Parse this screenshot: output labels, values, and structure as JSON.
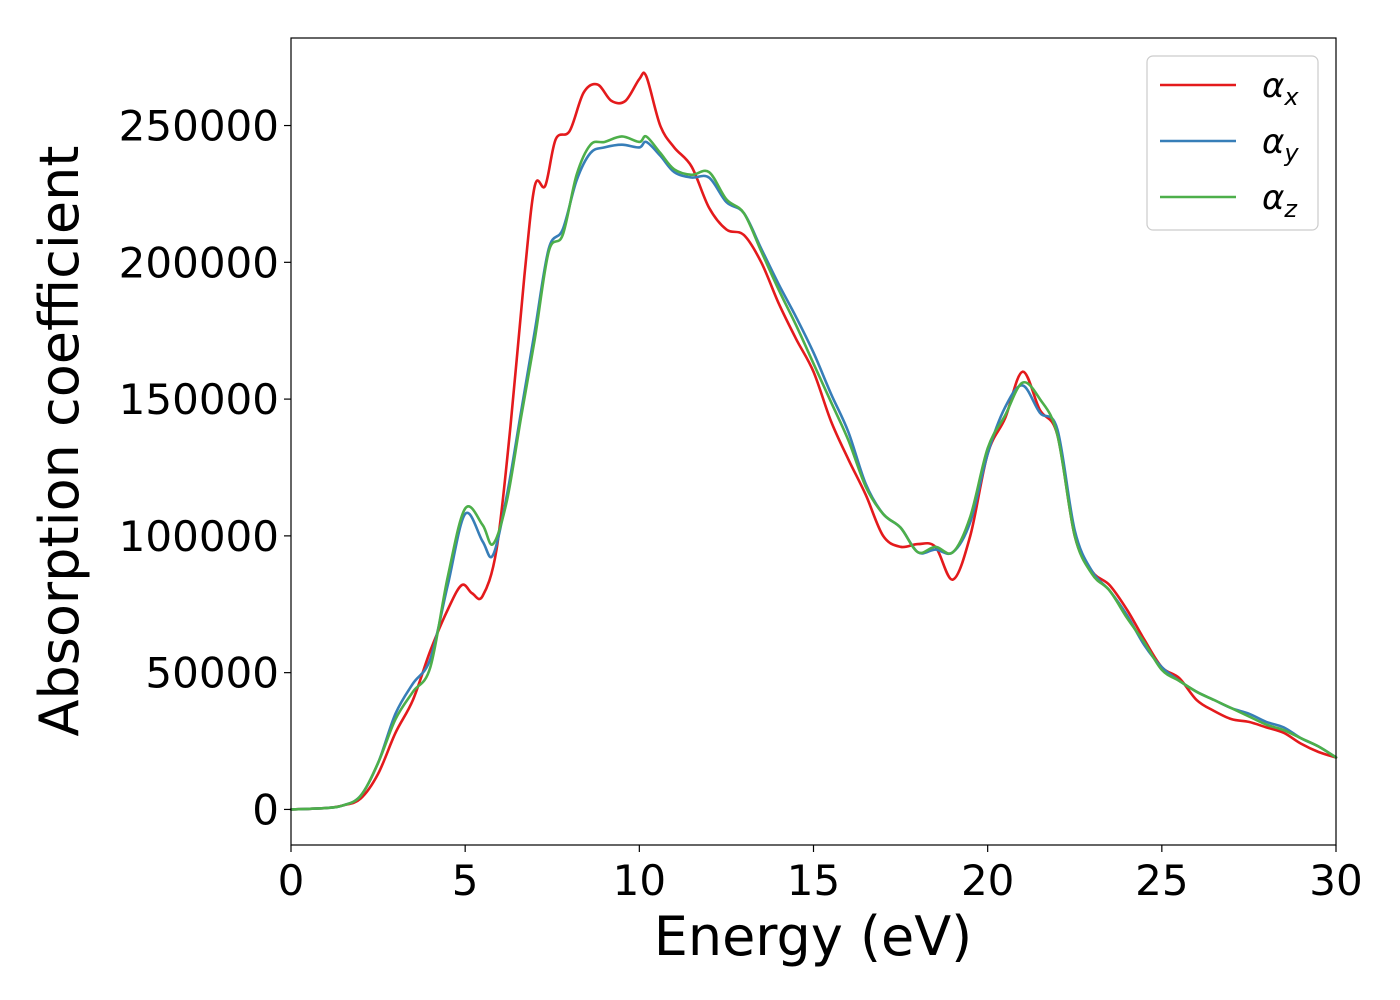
{
  "chart_data": {
    "type": "line",
    "xlabel": "Energy (eV)",
    "ylabel": "Absorption coefficient",
    "xlim": [
      0,
      30
    ],
    "ylim": [
      -13000,
      282000
    ],
    "xticks": [
      "0",
      "5",
      "10",
      "15",
      "20",
      "25",
      "30"
    ],
    "yticks": [
      "0",
      "50000",
      "100000",
      "150000",
      "200000",
      "250000"
    ],
    "grid": false,
    "legend_position": "top-right",
    "series": [
      {
        "name": "α",
        "subscript": "x",
        "color": "#e41a1c",
        "x": [
          0,
          1,
          1.5,
          2,
          2.5,
          3,
          3.5,
          4,
          4.5,
          4.9,
          5.2,
          5.5,
          5.9,
          6.3,
          6.7,
          7.0,
          7.3,
          7.6,
          8.0,
          8.4,
          8.8,
          9.2,
          9.6,
          10.0,
          10.2,
          10.6,
          11.0,
          11.5,
          12.0,
          12.5,
          13.0,
          13.5,
          14.0,
          14.5,
          15.0,
          15.5,
          16.0,
          16.5,
          17.0,
          17.5,
          18.0,
          18.5,
          19.0,
          19.5,
          20.0,
          20.5,
          21.0,
          21.5,
          22.0,
          22.5,
          23.0,
          23.5,
          24.0,
          24.5,
          25.0,
          25.5,
          26.0,
          26.5,
          27.0,
          27.5,
          28.0,
          28.5,
          29.0,
          29.5,
          30.0
        ],
        "y": [
          0,
          500,
          1500,
          4000,
          13000,
          28000,
          40000,
          58000,
          73000,
          82000,
          79000,
          78000,
          95000,
          140000,
          195000,
          228000,
          228000,
          245000,
          248000,
          262000,
          265000,
          259000,
          259000,
          267000,
          268000,
          250000,
          242000,
          235000,
          220000,
          212000,
          210000,
          200000,
          185000,
          172000,
          160000,
          142000,
          128000,
          115000,
          100000,
          96000,
          97000,
          96000,
          84000,
          100000,
          130000,
          143000,
          160000,
          146000,
          137000,
          100000,
          87000,
          82000,
          73000,
          62000,
          52000,
          48000,
          40000,
          36000,
          33000,
          32000,
          30000,
          28000,
          24000,
          21000,
          19000
        ]
      },
      {
        "name": "α",
        "subscript": "y",
        "color": "#377eb8",
        "x": [
          0,
          1,
          1.5,
          2,
          2.5,
          3,
          3.5,
          4,
          4.5,
          5.0,
          5.5,
          5.8,
          6.2,
          6.6,
          7.0,
          7.4,
          7.8,
          8.2,
          8.6,
          9.0,
          9.5,
          10.0,
          10.2,
          10.6,
          11.0,
          11.5,
          12.0,
          12.5,
          13.0,
          13.5,
          14.0,
          14.5,
          15.0,
          15.5,
          16.0,
          16.5,
          17.0,
          17.5,
          18.0,
          18.5,
          19.0,
          19.5,
          20.0,
          20.5,
          21.0,
          21.5,
          22.0,
          22.5,
          23.0,
          23.5,
          24.0,
          24.5,
          25.0,
          25.5,
          26.0,
          26.5,
          27.0,
          27.5,
          28.0,
          28.5,
          29.0,
          29.5,
          30.0
        ],
        "y": [
          0,
          500,
          1500,
          5000,
          17000,
          35000,
          46000,
          55000,
          82000,
          108000,
          98000,
          93000,
          115000,
          145000,
          175000,
          205000,
          212000,
          230000,
          240000,
          242000,
          243000,
          242000,
          244000,
          239000,
          233000,
          231000,
          231000,
          222000,
          218000,
          205000,
          192000,
          180000,
          167000,
          152000,
          138000,
          119000,
          108000,
          103000,
          94000,
          95000,
          94000,
          105000,
          130000,
          147000,
          155000,
          145000,
          139000,
          102000,
          87000,
          80000,
          71000,
          60000,
          52000,
          47000,
          43000,
          40000,
          37000,
          35000,
          32000,
          30000,
          26000,
          23000,
          19000
        ]
      },
      {
        "name": "α",
        "subscript": "z",
        "color": "#4daf4a",
        "x": [
          0,
          1,
          1.5,
          2,
          2.5,
          3,
          3.5,
          4,
          4.5,
          5.0,
          5.5,
          5.8,
          6.2,
          6.6,
          7.0,
          7.4,
          7.8,
          8.2,
          8.6,
          9.0,
          9.5,
          10.0,
          10.2,
          10.6,
          11.0,
          11.5,
          12.0,
          12.5,
          13.0,
          13.5,
          14.0,
          14.5,
          15.0,
          15.5,
          16.0,
          16.5,
          17.0,
          17.5,
          18.0,
          18.5,
          19.0,
          19.5,
          20.0,
          20.5,
          21.0,
          21.5,
          22.0,
          22.5,
          23.0,
          23.5,
          24.0,
          24.5,
          25.0,
          25.5,
          26.0,
          26.5,
          27.0,
          27.5,
          28.0,
          28.5,
          29.0,
          29.5,
          30.0
        ],
        "y": [
          0,
          500,
          1500,
          5000,
          17000,
          33000,
          43000,
          52000,
          85000,
          110000,
          104000,
          97000,
          113000,
          143000,
          172000,
          204000,
          210000,
          232000,
          243000,
          244000,
          246000,
          244000,
          246000,
          240000,
          234000,
          232000,
          233000,
          223000,
          218000,
          204000,
          190000,
          177000,
          163000,
          149000,
          135000,
          118000,
          108000,
          103000,
          94000,
          96000,
          94000,
          107000,
          132000,
          144000,
          156000,
          150000,
          137000,
          100000,
          86000,
          80000,
          70000,
          61000,
          51000,
          47000,
          43000,
          40000,
          37000,
          34000,
          31000,
          29000,
          26000,
          23000,
          19000
        ]
      }
    ]
  }
}
